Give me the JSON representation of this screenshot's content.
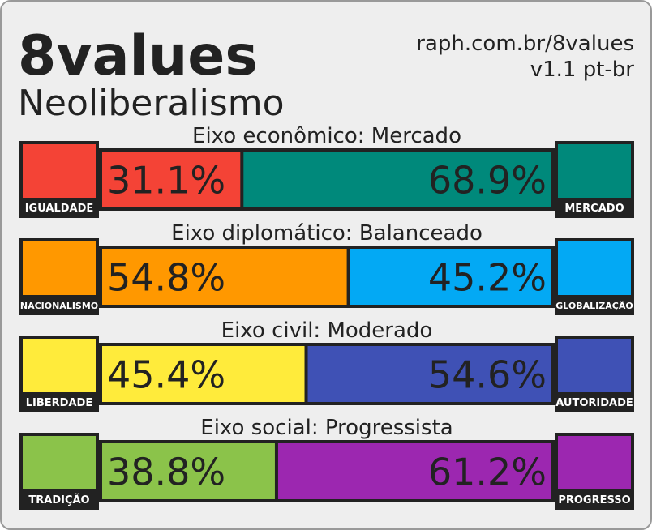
{
  "header": {
    "title": "8values",
    "subtitle": "Neoliberalismo",
    "url": "raph.com.br/8values",
    "version": "v1.1 pt-br"
  },
  "axes": [
    {
      "label": "Eixo econômico: Mercado",
      "left": {
        "name": "IGUALDADE",
        "color": "#f44336",
        "value": 31.1,
        "value_label": "31.1%"
      },
      "right": {
        "name": "MERCADO",
        "color": "#00897b",
        "value": 68.9,
        "value_label": "68.9%"
      }
    },
    {
      "label": "Eixo diplomático: Balanceado",
      "left": {
        "name": "NACIONALISMO",
        "color": "#ff9800",
        "value": 54.8,
        "value_label": "54.8%"
      },
      "right": {
        "name": "GLOBALIZAÇÃO",
        "color": "#03a9f4",
        "value": 45.2,
        "value_label": "45.2%"
      }
    },
    {
      "label": "Eixo civil: Moderado",
      "left": {
        "name": "LIBERDADE",
        "color": "#ffeb3b",
        "value": 45.4,
        "value_label": "45.4%"
      },
      "right": {
        "name": "AUTORIDADE",
        "color": "#3f51b5",
        "value": 54.6,
        "value_label": "54.6%"
      }
    },
    {
      "label": "Eixo social: Progressista",
      "left": {
        "name": "TRADIÇÃO",
        "color": "#8bc34a",
        "value": 38.8,
        "value_label": "38.8%"
      },
      "right": {
        "name": "PROGRESSO",
        "color": "#9c27b0",
        "value": 61.2,
        "value_label": "61.2%"
      }
    }
  ]
}
